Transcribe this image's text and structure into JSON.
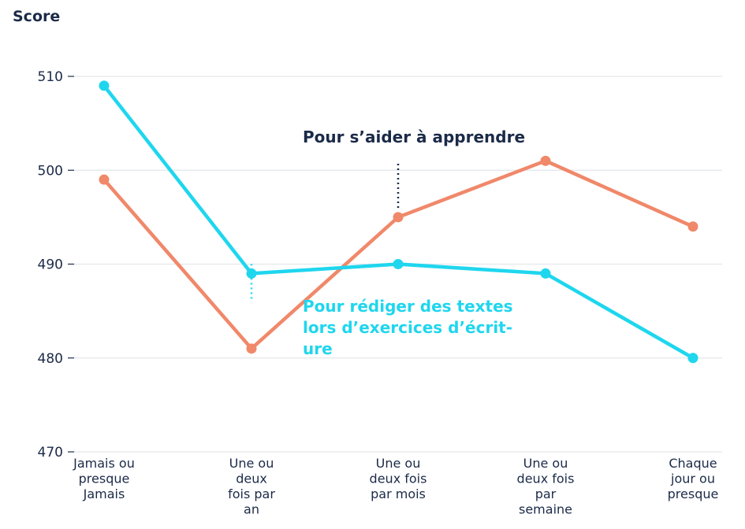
{
  "chart_data": {
    "type": "line",
    "ylabel": "Score",
    "xlabel": "",
    "ylim": [
      470,
      510
    ],
    "yticks": [
      470,
      480,
      490,
      500,
      510
    ],
    "categories": [
      [
        "Jamais ou",
        "presque",
        "Jamais"
      ],
      [
        "Une ou",
        "deux",
        "fois par",
        "an"
      ],
      [
        "Une ou",
        "deux fois",
        "par mois"
      ],
      [
        "Une ou",
        "deux fois",
        "par",
        "semaine"
      ],
      [
        "Chaque",
        "jour ou",
        "presque"
      ]
    ],
    "series": [
      {
        "name": "Pour s’aider à apprendre",
        "color": "#f0886a",
        "values": [
          499,
          481,
          495,
          501,
          494
        ],
        "label_lines": [
          "Pour s’aider à apprendre"
        ],
        "label_color": "#1b2a48",
        "label_anchor_index": 2
      },
      {
        "name": "Pour rédiger des textes lors d’exercices d’écriture",
        "color": "#1fd6ee",
        "values": [
          509,
          489,
          490,
          489,
          480
        ],
        "label_lines": [
          "Pour rédiger des textes",
          "lors d’exercices d’écrit-",
          "ure"
        ],
        "label_color": "#1fd6ee",
        "label_anchor_index": 1
      }
    ],
    "grid": true,
    "legend": "inline-annotations"
  }
}
